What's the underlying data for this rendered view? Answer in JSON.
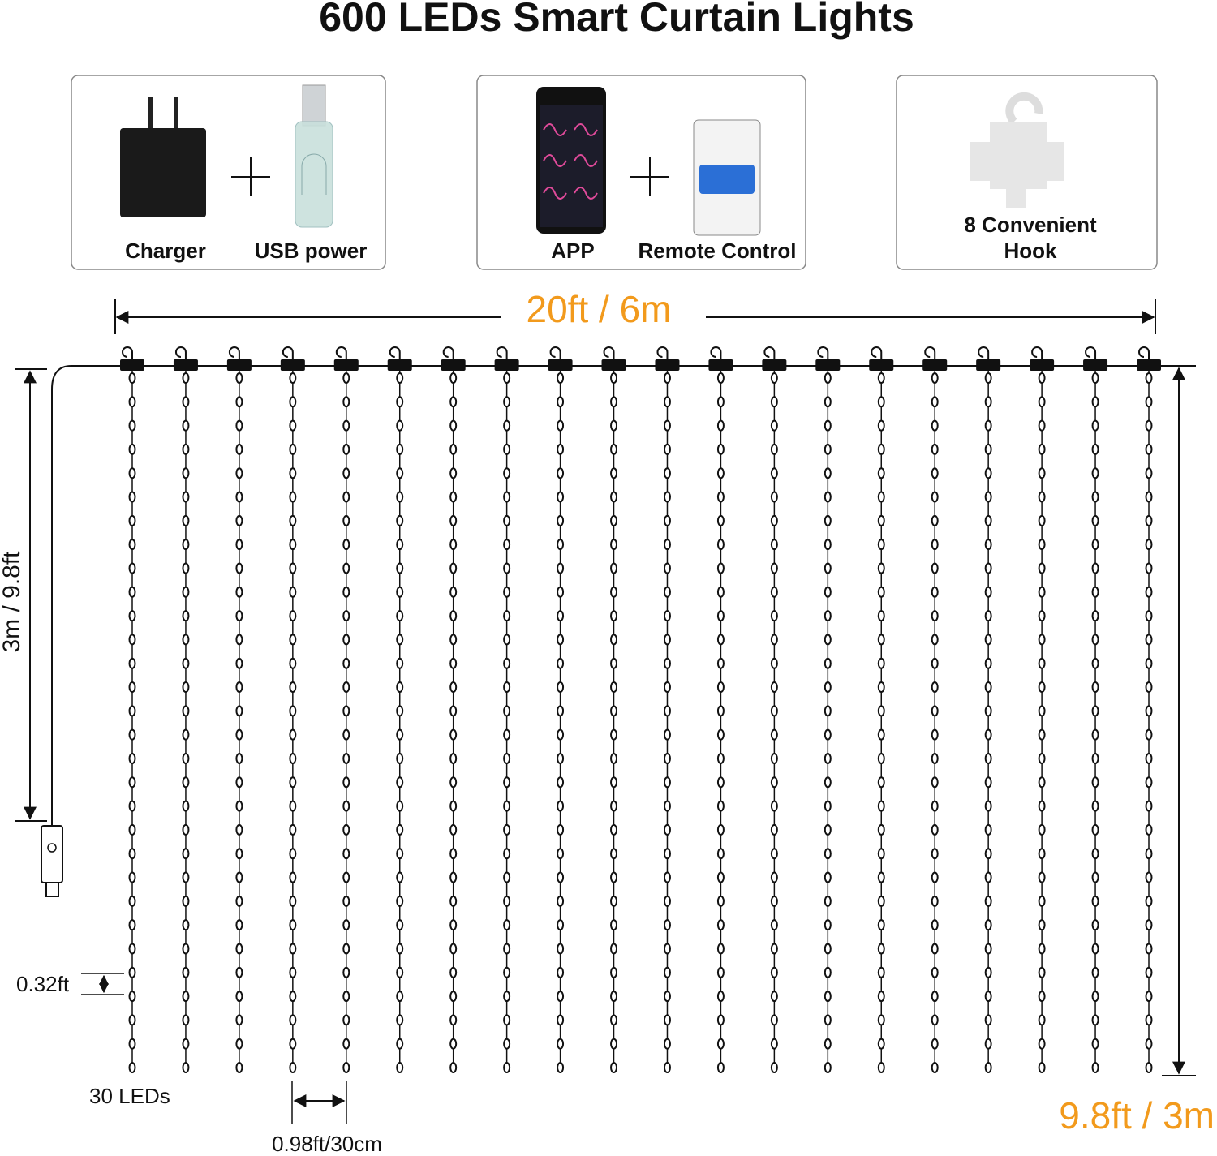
{
  "title": "600 LEDs Smart Curtain Lights",
  "items": [
    {
      "labels": [
        "Charger",
        "USB power"
      ]
    },
    {
      "labels": [
        "APP",
        "Remote Control"
      ]
    },
    {
      "labels": [
        "8 Convenient",
        "Hook"
      ]
    }
  ],
  "dimensions": {
    "width": "20ft / 6m",
    "drop_left": "3m / 9.8ft",
    "led_spacing": "0.32ft",
    "leds_per_strand": "30 LEDs",
    "strand_spacing": "0.98ft/30cm",
    "drop_right": "9.8ft / 3m"
  }
}
